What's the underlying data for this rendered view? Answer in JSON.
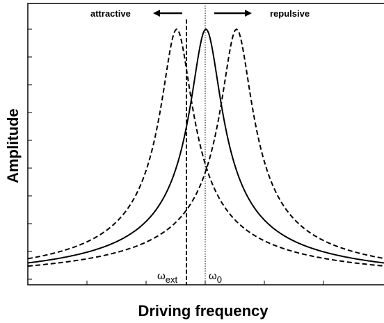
{
  "annotations": {
    "left": "attractive",
    "right": "repulsive"
  },
  "axes": {
    "y_label": "Amplitude",
    "x_label": "Driving frequency"
  },
  "markers": {
    "omega_ext": {
      "symbol": "ω",
      "subscript": "ext"
    },
    "omega_0": {
      "symbol": "ω",
      "subscript": "0"
    }
  }
}
